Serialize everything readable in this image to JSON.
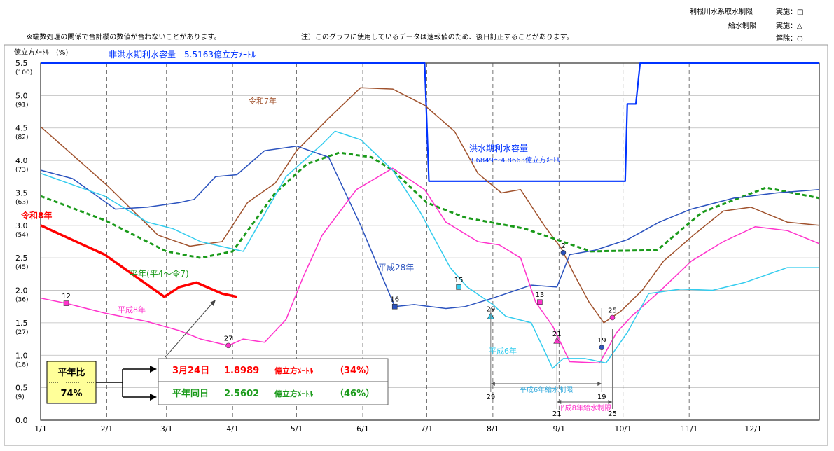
{
  "header": {
    "note_left": "※端数処理の関係で合計欄の数値が合わないことがあります。",
    "note_center": "注）このグラフに使用しているデータは速報値のため、後日訂正することがあります。",
    "legend_row1_label": "利根川水系取水制限",
    "legend_row1_value": "実施：□",
    "legend_row2_label": "給水制限",
    "legend_row2_value": "実施：△",
    "legend_row3_value": "解除：○"
  },
  "chart_data": {
    "type": "line",
    "ylabel": "億立方ﾒｰﾄﾙ　(%)",
    "x_ticks": [
      "1/1",
      "2/1",
      "3/1",
      "4/1",
      "5/1",
      "6/1",
      "7/1",
      "8/1",
      "9/1",
      "10/1",
      "11/1",
      "12/1"
    ],
    "y_ticks": [
      {
        "value": "5.5",
        "pct": "(100)"
      },
      {
        "value": "5.0",
        "pct": "(91)"
      },
      {
        "value": "4.5",
        "pct": "(82)"
      },
      {
        "value": "4.0",
        "pct": "(73)"
      },
      {
        "value": "3.5",
        "pct": "(63)"
      },
      {
        "value": "3.0",
        "pct": "(54)"
      },
      {
        "value": "2.5",
        "pct": "(45)"
      },
      {
        "value": "2.0",
        "pct": "(36)"
      },
      {
        "value": "1.5",
        "pct": "(27)"
      },
      {
        "value": "1.0",
        "pct": "(18)"
      },
      {
        "value": "0.5",
        "pct": "(9)"
      },
      {
        "value": "0.0",
        "pct": ""
      }
    ],
    "ylim": [
      0,
      5.5
    ],
    "xlim_days": [
      0,
      365
    ],
    "grid": true,
    "series": [
      {
        "name": "非洪水期利水容量",
        "color": "#0033ff",
        "dash": "none",
        "width": 2.2,
        "points": [
          [
            0,
            5.5
          ],
          [
            180,
            5.5
          ],
          [
            182,
            3.68
          ],
          [
            274,
            3.68
          ],
          [
            275,
            4.87
          ],
          [
            279,
            4.87
          ],
          [
            281,
            5.5
          ],
          [
            365,
            5.5
          ]
        ]
      },
      {
        "name": "令和7年",
        "color": "#a0522d",
        "dash": "none",
        "width": 1.5,
        "points": [
          [
            0,
            4.52
          ],
          [
            31,
            3.62
          ],
          [
            55,
            2.85
          ],
          [
            70,
            2.68
          ],
          [
            85,
            2.75
          ],
          [
            97,
            3.35
          ],
          [
            110,
            3.65
          ],
          [
            120,
            4.15
          ],
          [
            135,
            4.65
          ],
          [
            150,
            5.12
          ],
          [
            165,
            5.1
          ],
          [
            180,
            4.85
          ],
          [
            194,
            4.45
          ],
          [
            205,
            3.8
          ],
          [
            216,
            3.5
          ],
          [
            225,
            3.55
          ],
          [
            236,
            3.0
          ],
          [
            244,
            2.65
          ],
          [
            250,
            2.25
          ],
          [
            257,
            1.82
          ],
          [
            264,
            1.5
          ],
          [
            272,
            1.68
          ],
          [
            282,
            2.0
          ],
          [
            292,
            2.45
          ],
          [
            306,
            2.85
          ],
          [
            320,
            3.22
          ],
          [
            333,
            3.28
          ],
          [
            350,
            3.05
          ],
          [
            365,
            3.0
          ]
        ]
      },
      {
        "name": "平年（平4～令7）",
        "color": "#1a9a1a",
        "dash": "6,4",
        "width": 3,
        "points": [
          [
            0,
            3.45
          ],
          [
            30,
            3.08
          ],
          [
            59,
            2.6
          ],
          [
            75,
            2.5
          ],
          [
            90,
            2.6
          ],
          [
            110,
            3.5
          ],
          [
            125,
            3.95
          ],
          [
            140,
            4.12
          ],
          [
            155,
            4.05
          ],
          [
            165,
            3.85
          ],
          [
            181,
            3.35
          ],
          [
            199,
            3.12
          ],
          [
            227,
            2.95
          ],
          [
            258,
            2.6
          ],
          [
            289,
            2.62
          ],
          [
            310,
            3.2
          ],
          [
            340,
            3.58
          ],
          [
            365,
            3.42
          ]
        ]
      },
      {
        "name": "平成28年",
        "color": "#2a52be",
        "dash": "none",
        "width": 1.5,
        "points": [
          [
            0,
            3.85
          ],
          [
            15,
            3.72
          ],
          [
            35,
            3.25
          ],
          [
            50,
            3.28
          ],
          [
            65,
            3.35
          ],
          [
            72,
            3.4
          ],
          [
            82,
            3.75
          ],
          [
            92,
            3.78
          ],
          [
            105,
            4.15
          ],
          [
            120,
            4.22
          ],
          [
            135,
            4.05
          ],
          [
            150,
            3.0
          ],
          [
            166,
            1.75
          ],
          [
            175,
            1.78
          ],
          [
            190,
            1.72
          ],
          [
            199,
            1.75
          ],
          [
            212,
            1.88
          ],
          [
            230,
            2.08
          ],
          [
            242,
            2.05
          ],
          [
            248,
            2.55
          ],
          [
            260,
            2.62
          ],
          [
            275,
            2.78
          ],
          [
            290,
            3.05
          ],
          [
            305,
            3.25
          ],
          [
            325,
            3.42
          ],
          [
            345,
            3.5
          ],
          [
            365,
            3.55
          ]
        ]
      },
      {
        "name": "平成8年",
        "color": "#ff33cc",
        "dash": "none",
        "width": 1.5,
        "points": [
          [
            0,
            1.88
          ],
          [
            12,
            1.8
          ],
          [
            30,
            1.65
          ],
          [
            50,
            1.52
          ],
          [
            65,
            1.38
          ],
          [
            75,
            1.25
          ],
          [
            88,
            1.15
          ],
          [
            95,
            1.25
          ],
          [
            105,
            1.2
          ],
          [
            115,
            1.55
          ],
          [
            123,
            2.2
          ],
          [
            132,
            2.85
          ],
          [
            148,
            3.55
          ],
          [
            165,
            3.88
          ],
          [
            180,
            3.55
          ],
          [
            190,
            3.05
          ],
          [
            205,
            2.75
          ],
          [
            215,
            2.7
          ],
          [
            225,
            2.5
          ],
          [
            232,
            1.82
          ],
          [
            240,
            1.45
          ],
          [
            248,
            0.9
          ],
          [
            262,
            0.88
          ],
          [
            270,
            1.35
          ],
          [
            277,
            1.6
          ],
          [
            290,
            1.98
          ],
          [
            305,
            2.45
          ],
          [
            320,
            2.75
          ],
          [
            335,
            2.98
          ],
          [
            350,
            2.92
          ],
          [
            365,
            2.72
          ]
        ]
      },
      {
        "name": "平成6年",
        "color": "#33ccee",
        "dash": "none",
        "width": 1.5,
        "points": [
          [
            0,
            3.8
          ],
          [
            30,
            3.45
          ],
          [
            50,
            3.05
          ],
          [
            62,
            2.95
          ],
          [
            75,
            2.75
          ],
          [
            95,
            2.6
          ],
          [
            115,
            3.75
          ],
          [
            132,
            4.25
          ],
          [
            138,
            4.45
          ],
          [
            150,
            4.32
          ],
          [
            165,
            3.85
          ],
          [
            178,
            3.2
          ],
          [
            192,
            2.35
          ],
          [
            200,
            2.05
          ],
          [
            212,
            1.78
          ],
          [
            218,
            1.6
          ],
          [
            230,
            1.5
          ],
          [
            240,
            0.8
          ],
          [
            245,
            0.95
          ],
          [
            255,
            0.95
          ],
          [
            265,
            0.88
          ],
          [
            275,
            1.35
          ],
          [
            285,
            1.95
          ],
          [
            300,
            2.02
          ],
          [
            315,
            2.0
          ],
          [
            330,
            2.12
          ],
          [
            350,
            2.35
          ],
          [
            365,
            2.35
          ]
        ]
      },
      {
        "name": "令和8年",
        "color": "#ff0000",
        "dash": "none",
        "width": 3.5,
        "points": [
          [
            0,
            3.0
          ],
          [
            30,
            2.55
          ],
          [
            58,
            1.9
          ],
          [
            65,
            2.05
          ],
          [
            73,
            2.12
          ],
          [
            85,
            1.95
          ],
          [
            92,
            1.9
          ]
        ]
      }
    ],
    "series_labels": [
      {
        "text": "非洪水期利水容量　5.5163億立方ﾒｰﾄﾙ",
        "color": "#0033ff"
      },
      {
        "text": "洪水期利水容量",
        "color": "#0033ff"
      },
      {
        "text": "3.6849～4.8663億立方ﾒｰﾄﾙ",
        "color": "#0033ff"
      },
      {
        "text": "令和7年",
        "color": "#a0522d"
      },
      {
        "text": "令和8年",
        "color": "#ff0000"
      },
      {
        "text": "平年(平4～令7)",
        "color": "#1a9a1a"
      },
      {
        "text": "平成28年",
        "color": "#2a52be"
      },
      {
        "text": "平成8年",
        "color": "#ff33cc"
      },
      {
        "text": "平成6年",
        "color": "#33ccee"
      }
    ],
    "markers": [
      {
        "day": 12,
        "value": 1.8,
        "shape": "square",
        "color": "#ff33cc",
        "label": "12"
      },
      {
        "day": 88,
        "value": 1.15,
        "shape": "circle",
        "color": "#ff33cc",
        "label": "27"
      },
      {
        "day": 166,
        "value": 1.75,
        "shape": "square",
        "color": "#2a52be",
        "label": "16"
      },
      {
        "day": 196,
        "value": 2.05,
        "shape": "square",
        "color": "#33ccee",
        "label": "15"
      },
      {
        "day": 211,
        "value": 1.6,
        "shape": "triangle",
        "color": "#33ccee",
        "label": "29"
      },
      {
        "day": 234,
        "value": 1.82,
        "shape": "square",
        "color": "#ff33cc",
        "label": "13"
      },
      {
        "day": 242,
        "value": 1.22,
        "shape": "triangle",
        "color": "#ff33cc",
        "label": "21"
      },
      {
        "day": 245,
        "value": 2.58,
        "shape": "circle",
        "color": "#2a52be",
        "label": "2"
      },
      {
        "day": 263,
        "value": 1.12,
        "shape": "circle",
        "color": "#2a52be",
        "label": "19"
      },
      {
        "day": 268,
        "value": 1.58,
        "shape": "circle",
        "color": "#ff33cc",
        "label": "25"
      }
    ],
    "restriction_periods": [
      {
        "text": "平成6年給水制限",
        "start_label": "29",
        "end_label": "19",
        "start_day": 211,
        "end_day": 263
      },
      {
        "text": "平成8年給水制限",
        "start_label": "21",
        "end_label": "25",
        "start_day": 242,
        "end_day": 268
      }
    ]
  },
  "summary": {
    "label_title": "平年比",
    "label_pct": "74%",
    "row1": {
      "date": "3月24日",
      "value": "1.8989",
      "unit": "億立方ﾒｰﾄﾙ",
      "pct": "（34%）"
    },
    "row2": {
      "date": "平年同日",
      "value": "2.5602",
      "unit": "億立方ﾒｰﾄﾙ",
      "pct": "（46%）"
    }
  }
}
